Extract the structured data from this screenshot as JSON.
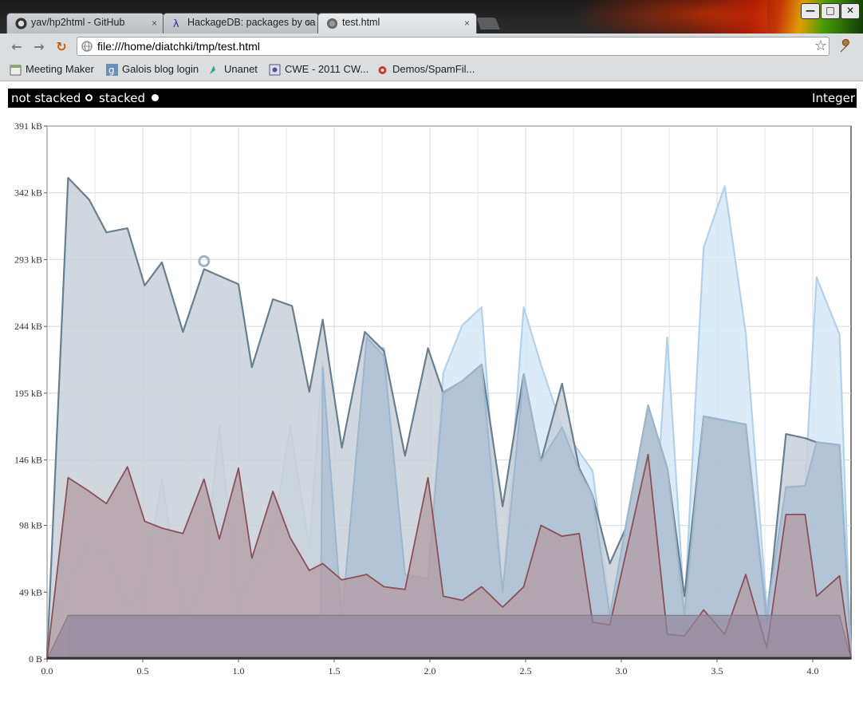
{
  "browser": {
    "tabs": [
      {
        "label": "yav/hp2html - GitHub",
        "icon": "github-icon",
        "active": false
      },
      {
        "label": "HackageDB: packages by ca",
        "icon": "lambda-icon",
        "active": false
      },
      {
        "label": "test.html",
        "icon": "page-icon",
        "active": true
      }
    ],
    "tab_close_glyph": "×",
    "window_buttons": {
      "minimize": "—",
      "maximize": "□",
      "close": "✕"
    },
    "nav": {
      "back": "←",
      "forward": "→",
      "reload": "↻"
    },
    "url": "file:///home/diatchki/tmp/test.html",
    "star_glyph": "☆",
    "bookmarks": [
      {
        "label": "Meeting Maker",
        "icon": "calendar-icon"
      },
      {
        "label": "Galois blog login",
        "icon": "g-icon"
      },
      {
        "label": "Unanet",
        "icon": "unanet-icon"
      },
      {
        "label": "CWE - 2011 CW...",
        "icon": "cwe-icon"
      },
      {
        "label": "Demos/SpamFil...",
        "icon": "bug-icon"
      }
    ]
  },
  "controls": {
    "not_stacked_label": "not stacked",
    "stacked_label": "stacked",
    "selected_mode": "stacked",
    "type_label": "Integer"
  },
  "colors": {
    "heap_fill": "#c8d0d8",
    "heap_line": "#687f90",
    "light_fill": "#d6e7f7",
    "light_line": "#b3d1ea",
    "mid_fill": "#a9bfd2",
    "mid_line": "#9cb6ce",
    "red_fill": "#b39ca4",
    "red_line": "#8b4f58",
    "base_fill": "#93889d"
  },
  "chart_data": {
    "type": "area",
    "xlim": [
      0.0,
      4.2
    ],
    "ylim": [
      0,
      391
    ],
    "y_ticks": [
      "0 B",
      "49 kB",
      "98 kB",
      "146 kB",
      "195 kB",
      "244 kB",
      "293 kB",
      "342 kB",
      "391 kB"
    ],
    "x_ticks": [
      "0.0",
      "0.5",
      "1.0",
      "1.5",
      "2.0",
      "2.5",
      "3.0",
      "3.5",
      "4.0"
    ],
    "y_tick_values": [
      0,
      49,
      98,
      146,
      195,
      244,
      293,
      342,
      391
    ],
    "x_tick_values": [
      0.0,
      0.5,
      1.0,
      1.5,
      2.0,
      2.5,
      3.0,
      3.5,
      4.0
    ],
    "grid": true,
    "marker": {
      "x": 0.82,
      "y": 286
    },
    "series": [
      {
        "key": "light",
        "points": [
          [
            0,
            0
          ],
          [
            0.12,
            60
          ],
          [
            0.21,
            82
          ],
          [
            0.31,
            78
          ],
          [
            0.42,
            38
          ],
          [
            0.51,
            55
          ],
          [
            0.6,
            132
          ],
          [
            0.72,
            25
          ],
          [
            0.82,
            60
          ],
          [
            0.9,
            171
          ],
          [
            1.0,
            37
          ],
          [
            1.07,
            65
          ],
          [
            1.17,
            82
          ],
          [
            1.27,
            171
          ],
          [
            1.37,
            82
          ],
          [
            1.44,
            218
          ],
          [
            1.54,
            25
          ],
          [
            1.67,
            230
          ],
          [
            1.76,
            228
          ],
          [
            1.87,
            62
          ],
          [
            1.99,
            59
          ],
          [
            2.07,
            210
          ],
          [
            2.17,
            245
          ],
          [
            2.27,
            258
          ],
          [
            2.38,
            49
          ],
          [
            2.49,
            258
          ],
          [
            2.58,
            216
          ],
          [
            2.69,
            170
          ],
          [
            2.78,
            152
          ],
          [
            2.85,
            138
          ],
          [
            2.94,
            40
          ],
          [
            3.02,
            32
          ],
          [
            3.14,
            22
          ],
          [
            3.24,
            236
          ],
          [
            3.33,
            36
          ],
          [
            3.43,
            302
          ],
          [
            3.54,
            347
          ],
          [
            3.65,
            239
          ],
          [
            3.76,
            37
          ],
          [
            3.86,
            127
          ],
          [
            3.96,
            127
          ],
          [
            4.02,
            280
          ],
          [
            4.14,
            238
          ],
          [
            4.2,
            0
          ]
        ]
      },
      {
        "key": "heap",
        "points": [
          [
            0,
            0
          ],
          [
            0.11,
            353
          ],
          [
            0.22,
            337
          ],
          [
            0.31,
            313
          ],
          [
            0.42,
            316
          ],
          [
            0.51,
            274
          ],
          [
            0.6,
            291
          ],
          [
            0.71,
            240
          ],
          [
            0.82,
            286
          ],
          [
            1.0,
            275
          ],
          [
            1.07,
            214
          ],
          [
            1.18,
            264
          ],
          [
            1.28,
            259
          ],
          [
            1.37,
            196
          ],
          [
            1.44,
            249
          ],
          [
            1.54,
            155
          ],
          [
            1.66,
            240
          ],
          [
            1.76,
            226
          ],
          [
            1.87,
            149
          ],
          [
            1.99,
            228
          ],
          [
            2.07,
            195
          ],
          [
            2.17,
            204
          ],
          [
            2.27,
            216
          ],
          [
            2.38,
            112
          ],
          [
            2.49,
            209
          ],
          [
            2.58,
            145
          ],
          [
            2.69,
            202
          ],
          [
            2.78,
            140
          ],
          [
            2.85,
            120
          ],
          [
            2.94,
            70
          ],
          [
            3.02,
            95
          ],
          [
            3.14,
            186
          ],
          [
            3.24,
            140
          ],
          [
            3.33,
            46
          ],
          [
            3.43,
            178
          ],
          [
            3.65,
            172
          ],
          [
            3.76,
            27
          ],
          [
            3.86,
            165
          ],
          [
            3.96,
            162
          ],
          [
            4.02,
            159
          ],
          [
            4.14,
            157
          ],
          [
            4.2,
            0
          ]
        ]
      },
      {
        "key": "mid",
        "points": [
          [
            0,
            0
          ],
          [
            0.11,
            0
          ],
          [
            0.12,
            32
          ],
          [
            1.43,
            32
          ],
          [
            1.44,
            214
          ],
          [
            1.54,
            30
          ],
          [
            1.67,
            236
          ],
          [
            1.76,
            222
          ],
          [
            1.87,
            62
          ],
          [
            1.99,
            59
          ],
          [
            2.07,
            196
          ],
          [
            2.17,
            204
          ],
          [
            2.27,
            216
          ],
          [
            2.38,
            49
          ],
          [
            2.49,
            209
          ],
          [
            2.58,
            145
          ],
          [
            2.69,
            170
          ],
          [
            2.78,
            138
          ],
          [
            2.85,
            120
          ],
          [
            2.94,
            32
          ],
          [
            3.02,
            95
          ],
          [
            3.14,
            186
          ],
          [
            3.24,
            140
          ],
          [
            3.33,
            32
          ],
          [
            3.43,
            178
          ],
          [
            3.65,
            172
          ],
          [
            3.76,
            32
          ],
          [
            3.86,
            126
          ],
          [
            3.96,
            127
          ],
          [
            4.02,
            159
          ],
          [
            4.14,
            157
          ],
          [
            4.2,
            0
          ]
        ]
      },
      {
        "key": "red",
        "points": [
          [
            0,
            0
          ],
          [
            0.11,
            133
          ],
          [
            0.21,
            124
          ],
          [
            0.31,
            114
          ],
          [
            0.42,
            141
          ],
          [
            0.51,
            101
          ],
          [
            0.6,
            96
          ],
          [
            0.71,
            92
          ],
          [
            0.82,
            132
          ],
          [
            0.9,
            88
          ],
          [
            1.0,
            140
          ],
          [
            1.07,
            74
          ],
          [
            1.18,
            123
          ],
          [
            1.27,
            89
          ],
          [
            1.37,
            65
          ],
          [
            1.44,
            70
          ],
          [
            1.54,
            58
          ],
          [
            1.67,
            62
          ],
          [
            1.76,
            53
          ],
          [
            1.87,
            51
          ],
          [
            1.99,
            133
          ],
          [
            2.07,
            46
          ],
          [
            2.17,
            43
          ],
          [
            2.27,
            53
          ],
          [
            2.38,
            38
          ],
          [
            2.49,
            53
          ],
          [
            2.58,
            98
          ],
          [
            2.69,
            90
          ],
          [
            2.78,
            92
          ],
          [
            2.85,
            27
          ],
          [
            2.94,
            25
          ],
          [
            3.14,
            150
          ],
          [
            3.24,
            18
          ],
          [
            3.33,
            17
          ],
          [
            3.43,
            36
          ],
          [
            3.54,
            18
          ],
          [
            3.65,
            62
          ],
          [
            3.76,
            8
          ],
          [
            3.86,
            106
          ],
          [
            3.96,
            106
          ],
          [
            4.02,
            46
          ],
          [
            4.14,
            61
          ],
          [
            4.2,
            0
          ]
        ]
      },
      {
        "key": "base",
        "points": [
          [
            0,
            0
          ],
          [
            0.11,
            32
          ],
          [
            4.14,
            32
          ],
          [
            4.2,
            0
          ]
        ]
      }
    ]
  }
}
